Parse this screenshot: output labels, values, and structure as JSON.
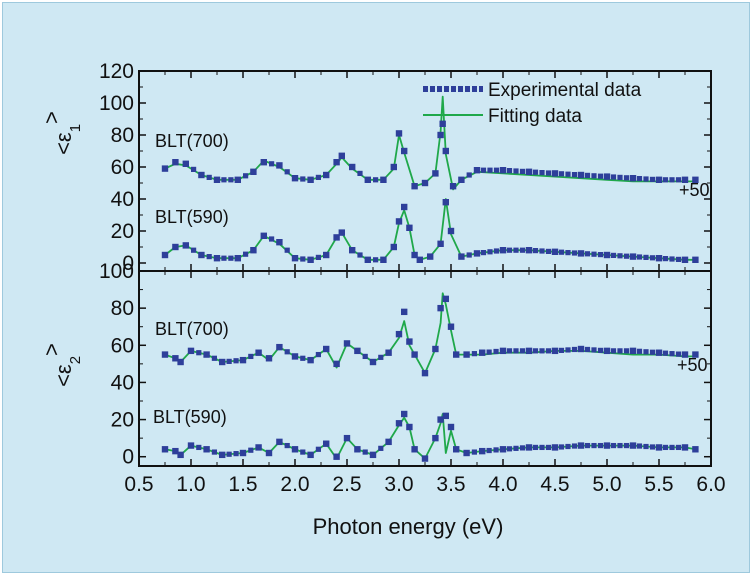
{
  "chart_data": {
    "type": "line",
    "xlabel": "Photon energy (eV)",
    "xlim": [
      0.5,
      6.0
    ],
    "x_ticks": [
      "0.5",
      "1.0",
      "1.5",
      "2.0",
      "2.5",
      "3.0",
      "3.5",
      "4.0",
      "4.5",
      "5.0",
      "5.5",
      "6.0"
    ],
    "legend": {
      "placement": "top-right",
      "entries": [
        "Experimental data",
        "Fitting data"
      ]
    },
    "colors": {
      "experimental": "#2e3f9a",
      "fitting": "#1fa84a",
      "background": "#cfe8f3"
    },
    "panels": [
      {
        "name": "eps1",
        "ylabel": {
          "open": "<",
          "symbol": "ε",
          "sub": "1",
          "close": ">"
        },
        "ylim": [
          -5,
          120
        ],
        "y_ticks": [
          "120",
          "100",
          "80",
          "60",
          "40",
          "20",
          "0"
        ],
        "offset_label": "+50",
        "annotations": [
          "BLT(700)",
          "BLT(590)"
        ],
        "series": [
          {
            "name": "BLT(700)",
            "fit_peaks": [
              [
                2.45,
                66
              ],
              [
                3.0,
                80
              ],
              [
                3.42,
                104
              ]
            ],
            "experimental": {
              "x": [
                0.75,
                0.85,
                0.95,
                1.1,
                1.25,
                1.45,
                1.6,
                1.7,
                1.85,
                2.0,
                2.15,
                2.3,
                2.4,
                2.45,
                2.55,
                2.7,
                2.85,
                2.95,
                3.0,
                3.05,
                3.15,
                3.25,
                3.35,
                3.4,
                3.42,
                3.45,
                3.52,
                3.6,
                3.75,
                4.0,
                4.25,
                4.5,
                4.75,
                5.0,
                5.25,
                5.5,
                5.75,
                5.85
              ],
              "y": [
                59,
                63,
                62,
                55,
                52,
                52,
                57,
                63,
                61,
                53,
                52,
                55,
                63,
                67,
                60,
                52,
                52,
                60,
                81,
                70,
                48,
                50,
                56,
                80,
                87,
                70,
                48,
                52,
                58,
                58,
                57,
                56,
                55,
                54,
                53,
                52,
                52,
                52
              ]
            },
            "fitting": {
              "x": [
                0.75,
                0.85,
                0.95,
                1.1,
                1.25,
                1.45,
                1.6,
                1.7,
                1.85,
                2.0,
                2.15,
                2.3,
                2.4,
                2.45,
                2.55,
                2.7,
                2.85,
                2.95,
                3.0,
                3.05,
                3.15,
                3.25,
                3.35,
                3.4,
                3.42,
                3.45,
                3.52,
                3.6,
                3.75,
                4.0,
                4.25,
                4.5,
                4.75,
                5.0,
                5.25,
                5.5,
                5.75,
                5.85
              ],
              "y": [
                59,
                62,
                61,
                55,
                52,
                52,
                57,
                64,
                60,
                53,
                52,
                55,
                62,
                66,
                59,
                52,
                52,
                59,
                80,
                69,
                48,
                50,
                56,
                82,
                104,
                68,
                46,
                52,
                57,
                56,
                55,
                54,
                53,
                52,
                51,
                51,
                51,
                51
              ]
            }
          },
          {
            "name": "BLT(590)",
            "fit_peaks": [
              [
                3.05,
                33
              ],
              [
                3.45,
                40
              ]
            ],
            "experimental": {
              "x": [
                0.75,
                0.85,
                0.95,
                1.1,
                1.25,
                1.45,
                1.6,
                1.7,
                1.85,
                2.0,
                2.15,
                2.3,
                2.4,
                2.45,
                2.55,
                2.7,
                2.85,
                2.95,
                3.0,
                3.05,
                3.1,
                3.15,
                3.2,
                3.3,
                3.4,
                3.45,
                3.5,
                3.6,
                3.75,
                4.0,
                4.25,
                4.5,
                4.75,
                5.0,
                5.25,
                5.5,
                5.75,
                5.85
              ],
              "y": [
                5,
                10,
                11,
                5,
                3,
                3,
                8,
                17,
                13,
                3,
                2,
                5,
                16,
                19,
                8,
                2,
                2,
                10,
                26,
                35,
                22,
                5,
                2,
                4,
                12,
                38,
                20,
                4,
                6,
                8,
                8,
                7,
                6,
                5,
                4,
                3,
                2,
                2
              ]
            },
            "fitting": {
              "x": [
                0.75,
                0.85,
                0.95,
                1.1,
                1.25,
                1.45,
                1.6,
                1.7,
                1.85,
                2.0,
                2.15,
                2.3,
                2.4,
                2.45,
                2.55,
                2.7,
                2.85,
                2.95,
                3.0,
                3.05,
                3.1,
                3.15,
                3.2,
                3.3,
                3.4,
                3.45,
                3.5,
                3.6,
                3.75,
                4.0,
                4.25,
                4.5,
                4.75,
                5.0,
                5.25,
                5.5,
                5.75,
                5.85
              ],
              "y": [
                5,
                10,
                11,
                5,
                3,
                3,
                8,
                17,
                12,
                3,
                2,
                5,
                16,
                19,
                8,
                2,
                2,
                10,
                25,
                33,
                22,
                5,
                2,
                4,
                12,
                40,
                18,
                4,
                6,
                8,
                8,
                7,
                6,
                5,
                4,
                3,
                2,
                2
              ]
            }
          }
        ]
      },
      {
        "name": "eps2",
        "ylabel": {
          "open": "<",
          "symbol": "ε",
          "sub": "2",
          "close": ">"
        },
        "ylim": [
          -5,
          100
        ],
        "y_ticks": [
          "100",
          "80",
          "60",
          "40",
          "20",
          "0"
        ],
        "offset_label": "+50",
        "annotations": [
          "BLT(700)",
          "BLT(590)"
        ],
        "series": [
          {
            "name": "BLT(700)",
            "fit_peaks": [
              [
                3.42,
                88
              ]
            ],
            "experimental": {
              "x": [
                0.75,
                0.85,
                0.9,
                1.0,
                1.15,
                1.3,
                1.5,
                1.65,
                1.75,
                1.85,
                2.0,
                2.15,
                2.3,
                2.4,
                2.5,
                2.6,
                2.75,
                2.9,
                3.0,
                3.05,
                3.1,
                3.15,
                3.25,
                3.35,
                3.4,
                3.45,
                3.5,
                3.55,
                3.65,
                3.8,
                4.0,
                4.25,
                4.5,
                4.75,
                5.0,
                5.25,
                5.5,
                5.75,
                5.85
              ],
              "y": [
                55,
                53,
                51,
                57,
                55,
                51,
                52,
                56,
                53,
                59,
                54,
                52,
                58,
                50,
                61,
                57,
                51,
                56,
                66,
                78,
                62,
                55,
                45,
                58,
                80,
                85,
                70,
                55,
                55,
                56,
                57,
                57,
                57,
                58,
                57,
                57,
                56,
                55,
                55
              ]
            },
            "fitting": {
              "x": [
                0.75,
                0.85,
                0.9,
                1.0,
                1.15,
                1.3,
                1.5,
                1.65,
                1.75,
                1.85,
                2.0,
                2.15,
                2.3,
                2.4,
                2.5,
                2.6,
                2.75,
                2.9,
                3.0,
                3.05,
                3.1,
                3.15,
                3.25,
                3.35,
                3.4,
                3.42,
                3.45,
                3.5,
                3.55,
                3.65,
                3.8,
                4.0,
                4.25,
                4.5,
                4.75,
                5.0,
                5.25,
                5.5,
                5.75,
                5.85
              ],
              "y": [
                55,
                53,
                51,
                57,
                55,
                51,
                52,
                56,
                52,
                59,
                54,
                52,
                58,
                48,
                61,
                57,
                51,
                56,
                64,
                73,
                60,
                55,
                45,
                58,
                72,
                88,
                82,
                68,
                55,
                55,
                55,
                56,
                56,
                57,
                57,
                56,
                55,
                55,
                54,
                54
              ]
            }
          },
          {
            "name": "BLT(590)",
            "fit_peaks": [
              [
                3.42,
                23
              ]
            ],
            "experimental": {
              "x": [
                0.75,
                0.85,
                0.9,
                1.0,
                1.15,
                1.3,
                1.5,
                1.65,
                1.75,
                1.85,
                2.0,
                2.15,
                2.3,
                2.4,
                2.5,
                2.6,
                2.75,
                2.9,
                3.0,
                3.05,
                3.1,
                3.15,
                3.25,
                3.35,
                3.4,
                3.45,
                3.5,
                3.55,
                3.65,
                3.8,
                4.0,
                4.25,
                4.5,
                4.75,
                5.0,
                5.25,
                5.5,
                5.75,
                5.85
              ],
              "y": [
                4,
                3,
                1,
                6,
                4,
                1,
                2,
                5,
                2,
                8,
                4,
                1,
                7,
                0,
                10,
                4,
                1,
                8,
                18,
                23,
                16,
                4,
                -1,
                10,
                20,
                22,
                16,
                4,
                2,
                3,
                4,
                5,
                5,
                6,
                6,
                6,
                5,
                5,
                4
              ]
            },
            "fitting": {
              "x": [
                0.75,
                0.85,
                0.9,
                1.0,
                1.15,
                1.3,
                1.5,
                1.65,
                1.75,
                1.85,
                2.0,
                2.15,
                2.3,
                2.4,
                2.5,
                2.6,
                2.75,
                2.9,
                3.0,
                3.05,
                3.1,
                3.15,
                3.25,
                3.35,
                3.4,
                3.42,
                3.45,
                3.5,
                3.55,
                3.65,
                3.8,
                4.0,
                4.25,
                4.5,
                4.75,
                5.0,
                5.25,
                5.5,
                5.75,
                5.85
              ],
              "y": [
                4,
                3,
                1,
                6,
                4,
                1,
                2,
                5,
                2,
                8,
                4,
                1,
                7,
                -1,
                10,
                4,
                1,
                8,
                17,
                21,
                16,
                4,
                -1,
                10,
                18,
                23,
                2,
                14,
                4,
                2,
                3,
                4,
                5,
                5,
                6,
                6,
                6,
                5,
                5,
                4
              ]
            }
          }
        ]
      }
    ]
  }
}
